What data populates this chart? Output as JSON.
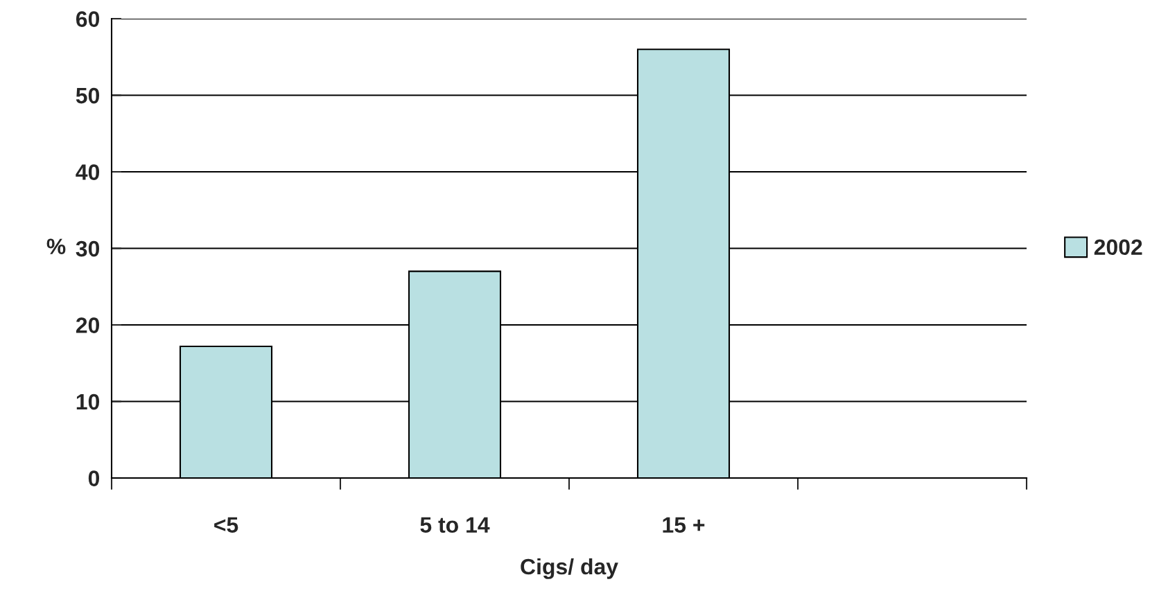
{
  "chart_data": {
    "type": "bar",
    "xlabel": "Cigs/ day",
    "ylabel": "%",
    "categories": [
      "<5",
      "5 to 14",
      "15 +",
      null
    ],
    "series": [
      {
        "name": "2002",
        "color": "#b9e0e2",
        "values": [
          17.2,
          27,
          56,
          null
        ]
      }
    ],
    "ylim": [
      0,
      60
    ],
    "yticks": [
      0,
      10,
      20,
      30,
      40,
      50,
      60
    ],
    "grid": "y",
    "legend": "right"
  }
}
